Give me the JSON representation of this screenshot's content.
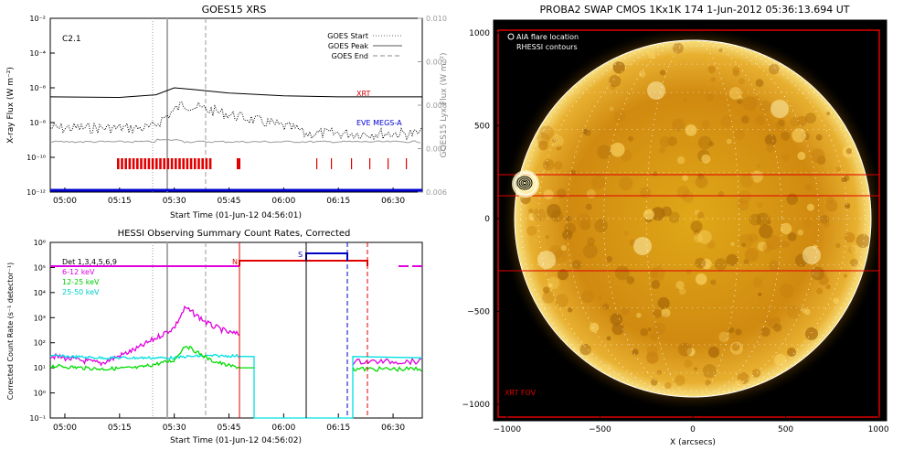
{
  "goes": {
    "title": "GOES15 XRS",
    "ylabel_left": "X-ray Flux (W m⁻²)",
    "ylabel_right": "GOES15 Lyx Flux (W m⁻²)",
    "xlabel": "Start Time (01-Jun-12 04:56:01)",
    "xticks": [
      "05:00",
      "05:15",
      "05:30",
      "05:45",
      "06:00",
      "06:15",
      "06:30"
    ],
    "yticks_left": [
      "10⁻¹²",
      "10⁻¹⁰",
      "10⁻⁸",
      "10⁻⁶",
      "10⁻⁴",
      "10⁻²"
    ],
    "yticks_right": [
      "0.006",
      "0.007",
      "0.008",
      "0.009",
      "0.010"
    ],
    "class_label": "C2.1",
    "legend": [
      "GOES Start",
      "GOES Peak",
      "GOES End"
    ],
    "xrt_label": "XRT",
    "eve_label": "EVE MEGS-A",
    "colors": {
      "xrt": "#d00000",
      "eve": "#0000d0",
      "peak": "#999999"
    }
  },
  "hessi": {
    "title": "HESSI Observing Summary Count Rates, Corrected",
    "ylabel": "Corrected Count Rate (s⁻¹ detector⁻¹)",
    "xlabel": "Start Time (01-Jun-12 04:56:02)",
    "xticks": [
      "05:00",
      "05:15",
      "05:30",
      "05:45",
      "06:00",
      "06:15",
      "06:30"
    ],
    "yticks": [
      "10⁻¹",
      "10⁰",
      "10¹",
      "10²",
      "10³",
      "10⁴",
      "10⁵",
      "10⁶"
    ],
    "legend": [
      "Det 1,3,4,5,6,9",
      "6-12 keV",
      "12-25 keV",
      "25-50 keV"
    ],
    "flag_n": "N",
    "flag_s": "S",
    "colors": {
      "6-12": "#e000e0",
      "12-25": "#00dd00",
      "25-50": "#00e0e0",
      "flag": "#e00000",
      "s": "#0000c0"
    }
  },
  "swap": {
    "title": "PROBA2 SWAP CMOS 1Kx1K 174   1-Jun-2012 05:36:13.694 UT",
    "xlabel": "X (arcsecs)",
    "xticks": [
      "−1000",
      "−500",
      "0",
      "500",
      "1000"
    ],
    "yticks": [
      "1000",
      "500",
      "0",
      "−500",
      "−1000"
    ],
    "legend": [
      "AIA flare location",
      "RHESSI contours"
    ],
    "fov_label": "XRT FOV",
    "colors": {
      "fov": "#e00000",
      "sun": "#d89a10"
    }
  },
  "chart_data": [
    {
      "type": "line",
      "title": "GOES15 XRS",
      "xlabel": "Start Time (01-Jun-12 04:56:01)",
      "ylabel": "X-ray Flux (W m⁻²)",
      "ylim_log10": [
        -12,
        -2
      ],
      "y2lim": [
        0.006,
        0.01
      ],
      "x": [
        "04:56",
        "05:15",
        "05:25",
        "05:30",
        "05:35",
        "05:45",
        "06:00",
        "06:15",
        "06:30",
        "06:38"
      ],
      "series": [
        {
          "name": "XRT",
          "values": [
            3e-07,
            2.8e-07,
            4e-07,
            1e-06,
            8e-07,
            5e-07,
            3.5e-07,
            3e-07,
            3e-07,
            3e-07
          ]
        },
        {
          "name": "EVE MEGS-A",
          "values": [
            1e-12,
            1e-12,
            1e-12,
            1e-12,
            1e-12,
            1e-12,
            1e-12,
            1e-12,
            1e-12,
            1e-12
          ]
        }
      ],
      "markers": {
        "GOES Start": "05:25",
        "GOES Peak": "05:31",
        "GOES End": "05:41"
      },
      "class": "C2.1"
    },
    {
      "type": "line",
      "title": "HESSI Observing Summary Count Rates, Corrected",
      "xlabel": "Start Time (01-Jun-12 04:56:02)",
      "ylabel": "Corrected Count Rate (s⁻¹ detector⁻¹)",
      "ylim_log10": [
        -1,
        6
      ],
      "x": [
        "04:56",
        "05:10",
        "05:20",
        "05:30",
        "05:33",
        "05:40",
        "05:45",
        "05:49",
        "05:52"
      ],
      "series": [
        {
          "name": "6-12 keV",
          "values": [
            30,
            15,
            60,
            400,
            2500,
            500,
            250,
            200,
            60
          ]
        },
        {
          "name": "12-25 keV",
          "values": [
            12,
            9,
            10,
            20,
            80,
            20,
            12,
            10,
            10
          ]
        },
        {
          "name": "25-50 keV",
          "values": [
            30,
            25,
            25,
            25,
            28,
            30,
            30,
            30,
            30
          ]
        }
      ]
    },
    {
      "type": "image",
      "title": "PROBA2 SWAP CMOS 1Kx1K 174   1-Jun-2012 05:36:13.694 UT",
      "xlabel": "X (arcsecs)",
      "xlim": [
        -1100,
        1100
      ],
      "ylim": [
        -1100,
        1100
      ],
      "flare_location": {
        "x": -940,
        "y": 220
      }
    }
  ]
}
